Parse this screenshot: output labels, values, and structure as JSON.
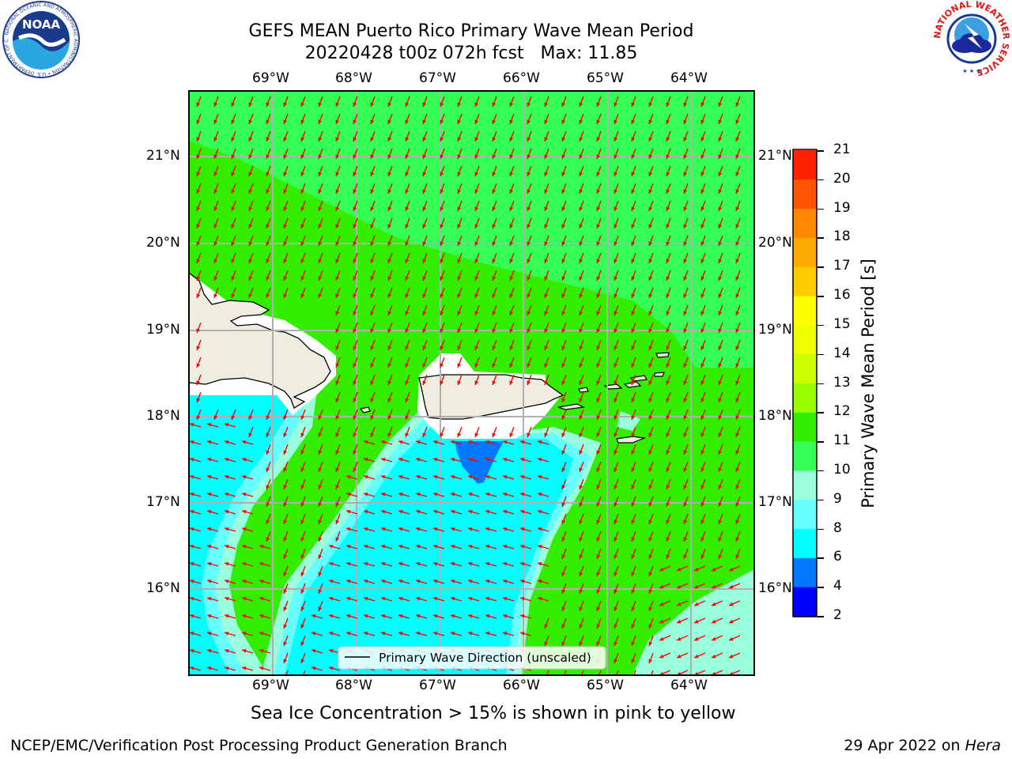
{
  "header": {
    "title_line1": "GEFS MEAN Puerto Rico Primary Wave Mean Period",
    "title_line2": "20220428 t00z 072h fcst   Max: 11.85"
  },
  "logos": {
    "left": "NOAA",
    "left_ring_text": "NATIONAL OCEANIC AND ATMOSPHERIC ADMINISTRATION • U.S. DEPARTMENT OF COMMERCE",
    "right_ring_text": "NATIONAL WEATHER SERVICE"
  },
  "map": {
    "lon_labels": [
      "69°W",
      "68°W",
      "67°W",
      "66°W",
      "65°W",
      "64°W"
    ],
    "lat_labels": [
      "21°N",
      "20°N",
      "19°N",
      "18°N",
      "17°N",
      "16°N"
    ],
    "legend_label": "Primary Wave Direction (unscaled)",
    "arrow_color": "#ff0000",
    "land_color": "#efeddf"
  },
  "colorbar": {
    "label": "Primary Wave Mean Period [s]",
    "ticks": [
      "2",
      "4",
      "6",
      "8",
      "9",
      "10",
      "11",
      "12",
      "13",
      "14",
      "15",
      "16",
      "17",
      "18",
      "19",
      "20",
      "21"
    ],
    "colors": [
      "#0000ff",
      "#0077ff",
      "#00ffff",
      "#66ffff",
      "#99ffdd",
      "#33ff55",
      "#33ee00",
      "#99ff00",
      "#ccff00",
      "#eeff00",
      "#ffff00",
      "#ffcc00",
      "#ffaa00",
      "#ff8800",
      "#ff5500",
      "#ff2200",
      "#ff0000"
    ]
  },
  "notes": {
    "sea_ice": "Sea Ice Concentration > 15% is shown in pink to yellow"
  },
  "footer": {
    "left": "NCEP/EMC/Verification Post Processing Product Generation Branch",
    "right_prefix": "29 Apr 2022 on ",
    "right_host": "Hera"
  }
}
